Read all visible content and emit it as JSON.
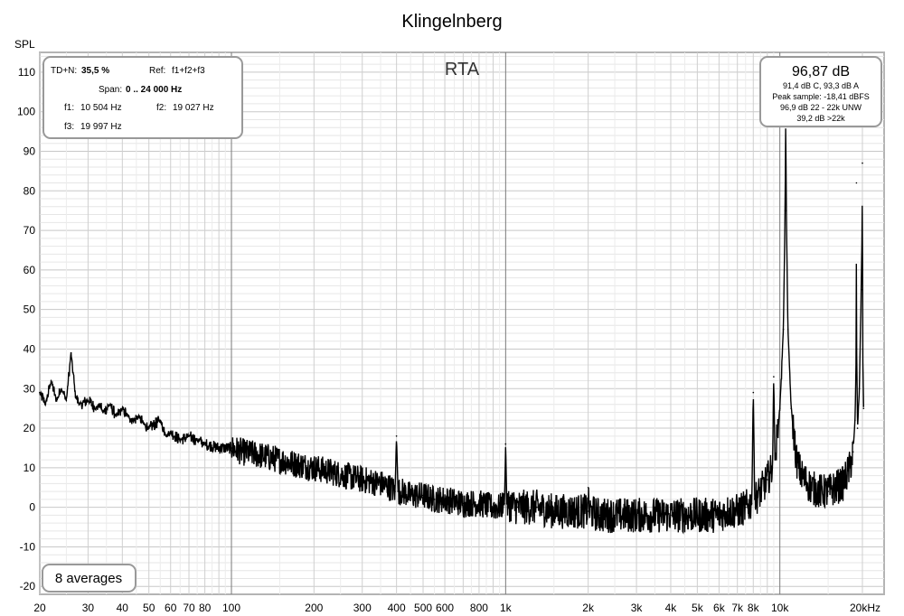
{
  "chart_data": {
    "type": "line",
    "title": "Klingelnberg",
    "panel_label": "RTA",
    "ylabel": "SPL",
    "xscale": "log",
    "xlim": [
      20,
      24000
    ],
    "ylim": [
      -22,
      115
    ],
    "grid": true,
    "yticks": [
      110,
      100,
      90,
      80,
      70,
      60,
      50,
      40,
      30,
      20,
      10,
      0,
      -10,
      -20
    ],
    "xticks": [
      {
        "v": 20,
        "label": "20"
      },
      {
        "v": 30,
        "label": "30"
      },
      {
        "v": 40,
        "label": "40"
      },
      {
        "v": 50,
        "label": "50"
      },
      {
        "v": 60,
        "label": "60"
      },
      {
        "v": 70,
        "label": "70"
      },
      {
        "v": 80,
        "label": "80"
      },
      {
        "v": 100,
        "label": "100"
      },
      {
        "v": 200,
        "label": "200"
      },
      {
        "v": 300,
        "label": "300"
      },
      {
        "v": 400,
        "label": "400"
      },
      {
        "v": 500,
        "label": "500"
      },
      {
        "v": 600,
        "label": "600"
      },
      {
        "v": 800,
        "label": "800"
      },
      {
        "v": 1000,
        "label": "1k"
      },
      {
        "v": 2000,
        "label": "2k"
      },
      {
        "v": 3000,
        "label": "3k"
      },
      {
        "v": 4000,
        "label": "4k"
      },
      {
        "v": 5000,
        "label": "5k"
      },
      {
        "v": 6000,
        "label": "6k"
      },
      {
        "v": 7000,
        "label": "7k"
      },
      {
        "v": 8000,
        "label": "8k"
      },
      {
        "v": 10000,
        "label": "10k"
      },
      {
        "v": 20000,
        "label": "20kHz"
      }
    ],
    "series": [
      {
        "color": "#000000",
        "x": [
          20,
          21,
          22,
          23,
          24,
          25,
          26,
          27,
          28,
          30,
          32,
          33,
          34,
          36,
          38,
          40,
          42,
          44,
          46,
          48,
          50,
          55,
          58,
          60,
          65,
          70,
          75,
          80,
          90,
          100,
          110,
          130,
          150,
          170,
          200,
          230,
          260,
          300,
          350,
          380,
          395,
          400,
          405,
          420,
          450,
          500,
          550,
          600,
          700,
          800,
          900,
          950,
          990,
          1000,
          1010,
          1100,
          1300,
          1500,
          1700,
          1990,
          2000,
          2010,
          2200,
          2500,
          3000,
          3500,
          4000,
          4500,
          5000,
          5500,
          6000,
          6500,
          7000,
          7500,
          7900,
          8000,
          8100,
          8500,
          9000,
          9400,
          9500,
          9600,
          10000,
          10300,
          10450,
          10504,
          10560,
          10700,
          11000,
          11500,
          12000,
          13000,
          14000,
          14500,
          15000,
          16000,
          17000,
          17500,
          18000,
          18500,
          18800,
          19000,
          19027,
          19060,
          19200,
          19500,
          19800,
          19950,
          19997,
          20050,
          20200
        ],
        "y": [
          29,
          26,
          32,
          27,
          30,
          27,
          39,
          28,
          26,
          27,
          25,
          26,
          24,
          26,
          23,
          25,
          23,
          22,
          23,
          21,
          20,
          22,
          18,
          19,
          17,
          18,
          17,
          16,
          15,
          15,
          14,
          13,
          12,
          11,
          10,
          9,
          8,
          7,
          6,
          5,
          4,
          18,
          4,
          4,
          3,
          3,
          2,
          2,
          1,
          1,
          0,
          0,
          1,
          16,
          1,
          0,
          0,
          -1,
          -1,
          -1,
          5,
          -1,
          -2,
          -2,
          -2,
          -2,
          -2,
          -2,
          -2,
          -2,
          -2,
          -1,
          -1,
          0,
          1,
          29,
          2,
          4,
          7,
          10,
          33,
          12,
          25,
          45,
          75,
          97,
          75,
          45,
          25,
          12,
          8,
          5,
          4,
          4,
          4,
          5,
          6,
          8,
          10,
          14,
          22,
          40,
          82,
          40,
          20,
          30,
          55,
          70,
          87,
          40,
          25
        ]
      }
    ]
  },
  "top_left_box": {
    "tdn_label": "TD+N:",
    "tdn_value": "35,5 %",
    "ref_label": "Ref:",
    "ref_value": "f1+f2+f3",
    "span_label": "Span:",
    "span_value": "0 .. 24 000 Hz",
    "f1_label": "f1:",
    "f1_value": "10 504 Hz",
    "f2_label": "f2:",
    "f2_value": "19 027 Hz",
    "f3_label": "f3:",
    "f3_value": "19 997 Hz"
  },
  "top_right_box": {
    "level": "96,87 dB",
    "line1": "91,4 dB C, 93,3 dB A",
    "line2": "Peak sample: -18,41 dBFS",
    "line3": "96,9 dB 22 - 22k UNW",
    "line4": "39,2 dB >22k"
  },
  "averages_label": "8 averages"
}
